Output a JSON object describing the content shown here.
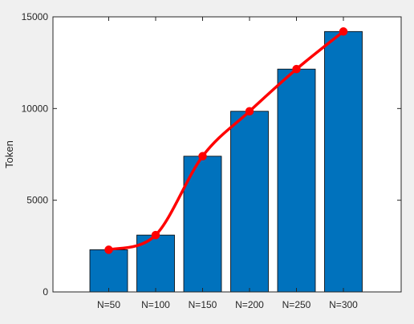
{
  "chart_data": {
    "type": "bar",
    "categories": [
      "N=50",
      "N=100",
      "N=150",
      "N=200",
      "N=250",
      "N=300"
    ],
    "series": [
      {
        "type": "bar",
        "values": [
          2300,
          3100,
          7400,
          9850,
          12150,
          14200
        ],
        "color": "#0072bd"
      },
      {
        "type": "line",
        "values": [
          2300,
          3100,
          7400,
          9850,
          12150,
          14200
        ],
        "color": "#ff0000",
        "marker": "circle"
      }
    ],
    "title": "",
    "xlabel": "",
    "ylabel": "Token",
    "ylim": [
      0,
      15000
    ],
    "yticks": [
      0,
      5000,
      10000,
      15000
    ],
    "grid": false,
    "legend": "none"
  }
}
